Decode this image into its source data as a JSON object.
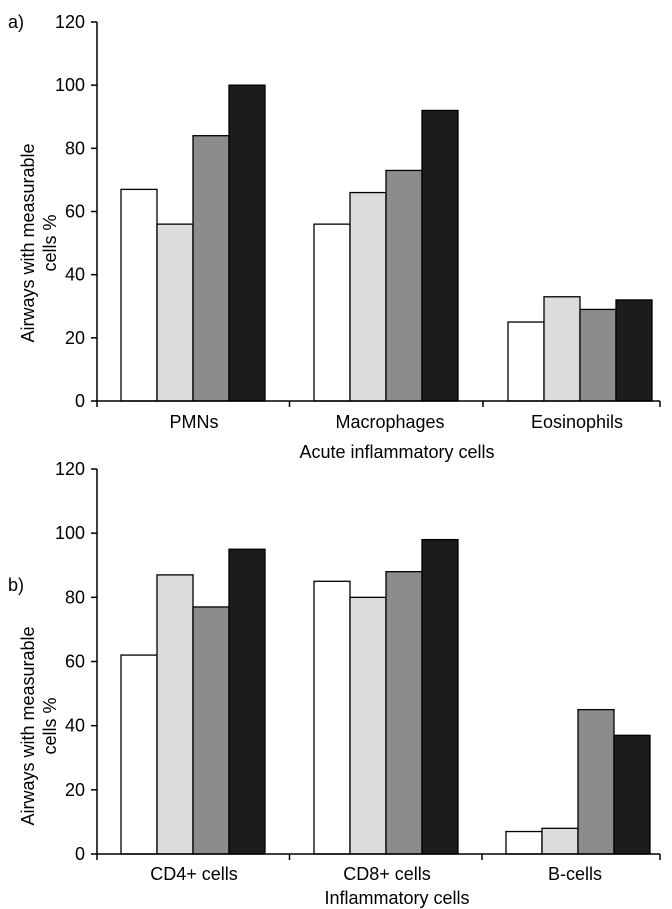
{
  "colors": {
    "axis": "#000000",
    "series_fills": [
      "#ffffff",
      "#dcdcdc",
      "#8c8c8c",
      "#1c1c1c"
    ]
  },
  "chart_data": [
    {
      "type": "bar",
      "panel_label": "a)",
      "categories": [
        "PMNs",
        "Macrophages",
        "Eosinophils"
      ],
      "series": [
        {
          "values": [
            67,
            56,
            25
          ]
        },
        {
          "values": [
            56,
            66,
            33
          ]
        },
        {
          "values": [
            84,
            73,
            29
          ]
        },
        {
          "values": [
            100,
            92,
            32
          ]
        }
      ],
      "xlabel": "Acute inflammatory cells",
      "ylabel": [
        "Airways with measurable",
        "cells %"
      ],
      "ylim": [
        0,
        120
      ],
      "yticks": [
        0,
        20,
        40,
        60,
        80,
        100,
        120
      ],
      "grid": false,
      "legend": "none"
    },
    {
      "type": "bar",
      "panel_label": "b)",
      "categories": [
        "CD4+ cells",
        "CD8+ cells",
        "B-cells"
      ],
      "series": [
        {
          "values": [
            62,
            85,
            7
          ]
        },
        {
          "values": [
            87,
            80,
            8
          ]
        },
        {
          "values": [
            77,
            88,
            45
          ]
        },
        {
          "values": [
            95,
            98,
            37
          ]
        }
      ],
      "xlabel": "Inflammatory cells",
      "ylabel": [
        "Airways with measurable",
        "cells %"
      ],
      "ylim": [
        0,
        120
      ],
      "yticks": [
        0,
        20,
        40,
        60,
        80,
        100,
        120
      ],
      "grid": false,
      "legend": "none"
    }
  ]
}
